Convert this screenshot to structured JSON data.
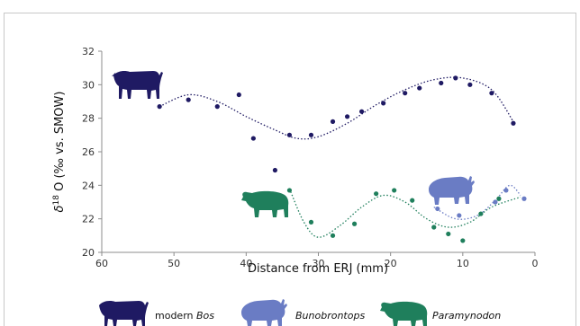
{
  "chart_data": {
    "type": "scatter",
    "xlabel": "Distance from ERJ (mm)",
    "ylabel_symbol": "δ",
    "ylabel_superscript": "18",
    "ylabel_rest": " O (‰ vs. SMOW)",
    "xlim": [
      60,
      0
    ],
    "ylim": [
      20,
      32
    ],
    "x_reversed": true,
    "x_ticks": [
      60,
      50,
      40,
      30,
      20,
      10,
      0
    ],
    "y_ticks": [
      20,
      22,
      24,
      26,
      28,
      30,
      32
    ],
    "grid": false,
    "legend_placement": "bottom",
    "series": [
      {
        "name": "modern Bos",
        "legend_prefix": "modern ",
        "legend_italic": "Bos",
        "color": "#1f1a63",
        "points": [
          [
            52,
            28.7
          ],
          [
            48,
            29.1
          ],
          [
            44,
            28.7
          ],
          [
            41,
            29.4
          ],
          [
            39,
            26.8
          ],
          [
            36,
            24.9
          ],
          [
            34,
            27.0
          ],
          [
            31,
            27.0
          ],
          [
            28,
            27.8
          ],
          [
            26,
            28.1
          ],
          [
            24,
            28.4
          ],
          [
            21,
            28.9
          ],
          [
            18,
            29.5
          ],
          [
            16,
            29.8
          ],
          [
            13,
            30.1
          ],
          [
            11,
            30.4
          ],
          [
            9,
            30.0
          ],
          [
            6,
            29.5
          ],
          [
            3,
            27.7
          ]
        ],
        "trend": [
          [
            52,
            28.7
          ],
          [
            48,
            29.4
          ],
          [
            44,
            29.0
          ],
          [
            40,
            28.1
          ],
          [
            36,
            27.3
          ],
          [
            33,
            26.8
          ],
          [
            30,
            26.9
          ],
          [
            26,
            27.7
          ],
          [
            22,
            28.8
          ],
          [
            18,
            29.7
          ],
          [
            14,
            30.3
          ],
          [
            10,
            30.4
          ],
          [
            6,
            29.7
          ],
          [
            3,
            27.8
          ]
        ]
      },
      {
        "name": "Bunobrontops",
        "legend_prefix": "",
        "legend_italic": "Bunobrontops",
        "color": "#6a7cc4",
        "points": [
          [
            13.5,
            22.6
          ],
          [
            10.5,
            22.2
          ],
          [
            5.5,
            23.0
          ],
          [
            4,
            23.7
          ],
          [
            1.5,
            23.2
          ]
        ],
        "trend": [
          [
            14,
            22.7
          ],
          [
            11,
            22.0
          ],
          [
            8,
            22.2
          ],
          [
            5.5,
            23.1
          ],
          [
            3.5,
            24.0
          ],
          [
            2,
            23.4
          ]
        ]
      },
      {
        "name": "Paramynodon",
        "legend_prefix": "",
        "legend_italic": "Paramynodon",
        "color": "#1f7f5c",
        "points": [
          [
            34,
            23.7
          ],
          [
            31,
            21.8
          ],
          [
            28,
            21.0
          ],
          [
            25,
            21.7
          ],
          [
            22,
            23.5
          ],
          [
            19.5,
            23.7
          ],
          [
            17,
            23.1
          ],
          [
            14,
            21.5
          ],
          [
            12,
            21.1
          ],
          [
            10,
            20.7
          ],
          [
            7.5,
            22.3
          ],
          [
            5,
            23.2
          ]
        ],
        "trend": [
          [
            34,
            23.8
          ],
          [
            32,
            21.8
          ],
          [
            30,
            20.9
          ],
          [
            27,
            21.6
          ],
          [
            24,
            22.7
          ],
          [
            21,
            23.4
          ],
          [
            18,
            23.0
          ],
          [
            15,
            22.0
          ],
          [
            12,
            21.5
          ],
          [
            9,
            21.8
          ],
          [
            6,
            22.7
          ],
          [
            2,
            23.3
          ]
        ]
      }
    ]
  }
}
